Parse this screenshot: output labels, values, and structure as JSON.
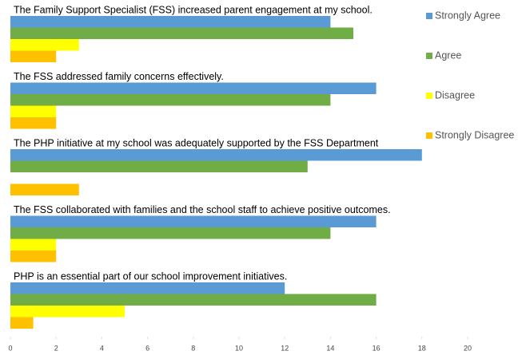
{
  "chart_data": {
    "type": "hbar",
    "categories": [
      "The Family Support Specialist (FSS) increased parent engagement at my school.",
      "The FSS addressed family concerns effectively.",
      "The PHP initiative at my school was adequately supported by the FSS Department",
      "The FSS collaborated with families and the school staff to achieve positive outcomes.",
      "PHP is an essential part of our school improvement initiatives."
    ],
    "series": [
      {
        "name": "Strongly Agree",
        "color": "#5b9bd5",
        "values": [
          14,
          16,
          18,
          16,
          12
        ]
      },
      {
        "name": "Agree",
        "color": "#70ad47",
        "values": [
          15,
          14,
          13,
          14,
          16
        ]
      },
      {
        "name": "Disagree",
        "color": "#ffff00",
        "values": [
          3,
          2,
          0,
          2,
          5
        ]
      },
      {
        "name": "Strongly Disagree",
        "color": "#ffc000",
        "values": [
          2,
          2,
          3,
          2,
          1
        ]
      }
    ],
    "xlim": [
      0,
      20
    ],
    "xticks": [
      0,
      2,
      4,
      6,
      8,
      10,
      12,
      14,
      16,
      18,
      20
    ],
    "legend": "right"
  }
}
